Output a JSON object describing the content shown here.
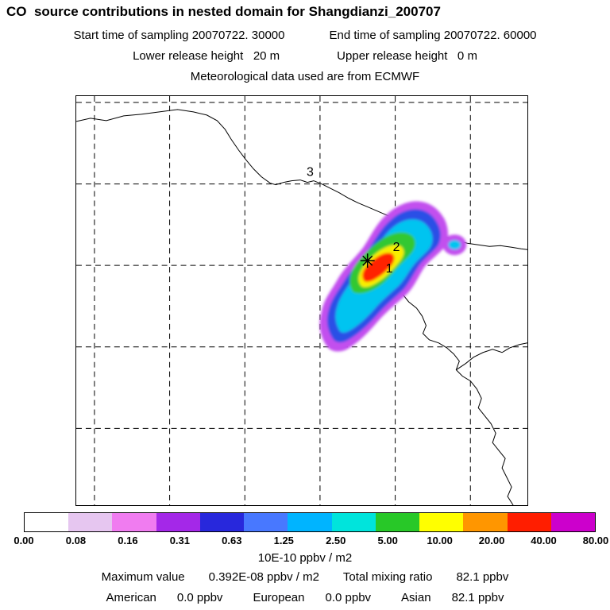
{
  "title": "CO  source contributions in nested domain for Shangdianzi_200707",
  "header": {
    "start_text": "Start time of sampling 20070722. 30000",
    "end_text": "End time of sampling 20070722. 60000",
    "lower_text": "Lower release height   20 m",
    "upper_text": "Upper release height   0 m",
    "met_line": "Meteorological data used are from ECMWF"
  },
  "map": {
    "point_labels": [
      "3",
      "2",
      "1"
    ],
    "plume_colors": [
      "#c24fee",
      "#2b50e6",
      "#00c4f0",
      "#32c832",
      "#f8f000",
      "#ff2000"
    ],
    "marker_color": "#000000"
  },
  "colorbar": {
    "segment_colors": [
      "#ffffff",
      "#e6c6f0",
      "#f07cf0",
      "#a428e8",
      "#2828dc",
      "#4878ff",
      "#00b4ff",
      "#00e4dc",
      "#28c828",
      "#ffff00",
      "#ff9600",
      "#ff1e00",
      "#cc00cc"
    ],
    "tick_labels": [
      "0.00",
      "0.08",
      "0.16",
      "0.31",
      "0.63",
      "1.25",
      "2.50",
      "5.00",
      "10.00",
      "20.00",
      "40.00",
      "80.00"
    ],
    "unit_label": "10E-10 ppbv / m2"
  },
  "footer": {
    "max_label": "Maximum value",
    "max_value": "0.392E-08 ppbv / m2",
    "total_label": "Total mixing ratio",
    "total_value": "82.1 ppbv",
    "regions": [
      {
        "name": "American",
        "value": "0.0 ppbv"
      },
      {
        "name": "European",
        "value": "0.0 ppbv"
      },
      {
        "name": "Asian",
        "value": "82.1 ppbv"
      }
    ]
  },
  "chart_data": {
    "type": "heatmap",
    "title": "CO source contributions in nested domain for Shangdianzi_200707",
    "station": "Shangdianzi",
    "sampling_start": "20070722. 30000",
    "sampling_end": "20070722. 60000",
    "lower_release_height_m": 20,
    "upper_release_height_m": 0,
    "meteorological_data": "ECMWF",
    "colorbar_levels": [
      0.0,
      0.08,
      0.16,
      0.31,
      0.63,
      1.25,
      2.5,
      5.0,
      10.0,
      20.0,
      40.0,
      80.0
    ],
    "colorbar_unit": "10E-10 ppbv / m2",
    "maximum_value": "0.392E-08 ppbv / m2",
    "total_mixing_ratio_ppbv": 82.1,
    "contributions_ppbv": {
      "American": 0.0,
      "European": 0.0,
      "Asian": 82.1
    },
    "map_point_labels": [
      "1",
      "2",
      "3"
    ],
    "legend_position": "bottom",
    "grid": "dashed lat-lon gridlines",
    "plume_center_note": "High-value plume (red core) centered near station marker, elongated SW-NE with purple outer contour"
  }
}
